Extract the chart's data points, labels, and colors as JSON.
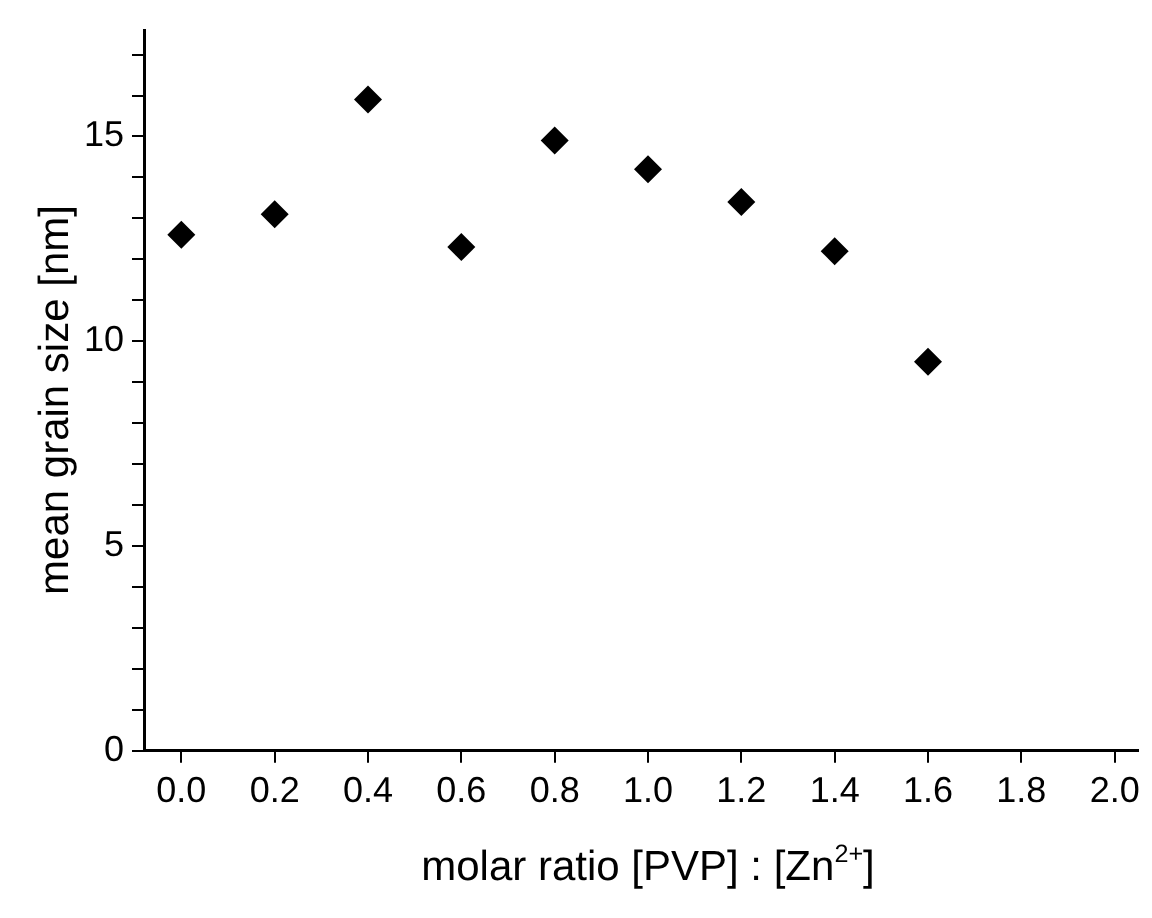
{
  "chart_data": {
    "type": "scatter",
    "xlabel": "molar ratio [PVP] : [Zn$^{2+}$]",
    "ylabel": "mean grain size [nm]",
    "x": [
      0.0,
      0.2,
      0.4,
      0.6,
      0.8,
      1.0,
      1.2,
      1.4,
      1.6
    ],
    "series": [
      {
        "color": "#000000",
        "values": [
          12.6,
          13.1,
          15.9,
          12.3,
          14.9,
          14.2,
          13.4,
          12.2,
          9.5
        ]
      }
    ],
    "xlim": [
      -0.08,
      2.05
    ],
    "ylim": [
      0,
      17.6
    ],
    "xticks": [
      {
        "value": 0,
        "label": "0.0"
      },
      {
        "value": 0.2,
        "label": "0.2"
      },
      {
        "value": 0.4,
        "label": "0.4"
      },
      {
        "value": 0.6,
        "label": "0.6"
      },
      {
        "value": 0.8,
        "label": "0.8"
      },
      {
        "value": 1,
        "label": "1.0"
      },
      {
        "value": 1.2,
        "label": "1.2"
      },
      {
        "value": 1.4,
        "label": "1.4"
      },
      {
        "value": 1.6,
        "label": "1.6"
      },
      {
        "value": 1.8,
        "label": "1.8"
      },
      {
        "value": 2,
        "label": "2.0"
      }
    ],
    "yticks": [
      0,
      {
        "value": 1,
        "label": null
      },
      {
        "value": 2,
        "label": null
      },
      {
        "value": 3,
        "label": null
      },
      {
        "value": 4,
        "label": null
      },
      5,
      {
        "value": 6,
        "label": null
      },
      {
        "value": 7,
        "label": null
      },
      {
        "value": 8,
        "label": null
      },
      {
        "value": 9,
        "label": null
      },
      10,
      {
        "value": 11,
        "label": null
      },
      {
        "value": 12,
        "label": null
      },
      {
        "value": 13,
        "label": null
      },
      {
        "value": 14,
        "label": null
      },
      15,
      {
        "value": 16,
        "label": null
      },
      {
        "value": 17,
        "label": null
      }
    ],
    "grid": false,
    "legend": false,
    "marker": "diamond"
  }
}
